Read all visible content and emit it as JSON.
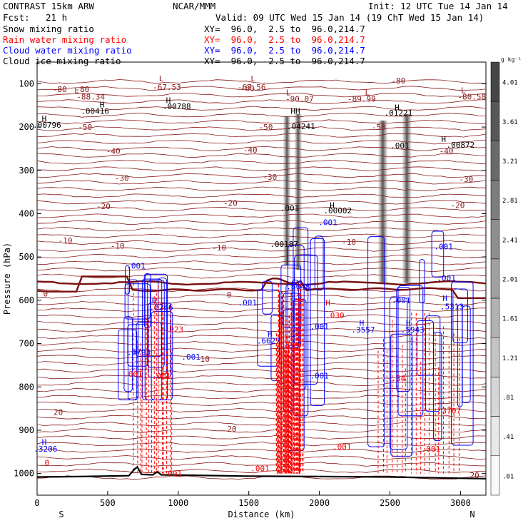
{
  "header": {
    "model": "CONTRAST 15km ARW",
    "center": "NCAR/MMM",
    "init": "Init: 12 UTC Tue 14 Jan 14",
    "fcst_label": "Fcst:",
    "fcst_value": "21 h",
    "valid": "Valid: 09 UTC Wed 15 Jan 14 (19 ChT Wed 15 Jan 14)"
  },
  "fields": [
    {
      "name": "Snow mixing ratio",
      "xy": "XY=  96.0,  2.5 to  96.0,214.7",
      "color": "#000000"
    },
    {
      "name": "Rain water mixing ratio",
      "xy": "XY=  96.0,  2.5 to  96.0,214.7",
      "color": "#ff0000"
    },
    {
      "name": "Cloud water mixing ratio",
      "xy": "XY=  96.0,  2.5 to  96.0,214.7",
      "color": "#0000ff"
    },
    {
      "name": "Cloud ice mixing ratio",
      "xy": "XY=  96.0,  2.5 to  96.0,214.7",
      "color": "#000000"
    }
  ],
  "colors": {
    "temperature": "#8b1a1a",
    "freezing_line": "#7a1010",
    "rain": "#ff0000",
    "cloud": "#0000ff",
    "ice_shading": "#333333",
    "terrain": "#000000"
  },
  "chart_data": {
    "type": "cross-section",
    "xlabel": "Distance (km)",
    "ylabel": "Pressure (hPa)",
    "xlim": [
      0,
      3180
    ],
    "ylim": [
      1050,
      50
    ],
    "x_ticks": [
      "0",
      "500",
      "1000",
      "1500",
      "2000",
      "2500",
      "3000"
    ],
    "y_ticks": [
      "100",
      "200",
      "300",
      "400",
      "500",
      "600",
      "700",
      "800",
      "900",
      "1000"
    ],
    "axis_ends": {
      "left": "S",
      "right": "N"
    },
    "colorbar": {
      "unit": "g kg⁻¹",
      "labels": [
        "4.01",
        "3.61",
        "3.21",
        "2.81",
        "2.41",
        "2.01",
        "1.61",
        "1.21",
        ".81",
        ".41",
        ".01"
      ]
    },
    "temperature_contours": [
      {
        "label": "-80",
        "x": 160,
        "p": 113
      },
      {
        "label": "-80",
        "x": 320,
        "p": 113
      },
      {
        "label": "-80",
        "x": 1490,
        "p": 110
      },
      {
        "label": "-80",
        "x": 2560,
        "p": 93
      },
      {
        "label": "-50",
        "x": 340,
        "p": 200
      },
      {
        "label": "-50",
        "x": 1620,
        "p": 200
      },
      {
        "label": "-50",
        "x": 2420,
        "p": 200
      },
      {
        "label": "-40",
        "x": 540,
        "p": 255
      },
      {
        "label": "-40",
        "x": 1510,
        "p": 253
      },
      {
        "label": "-40",
        "x": 2900,
        "p": 255
      },
      {
        "label": "-30",
        "x": 600,
        "p": 318
      },
      {
        "label": "-30",
        "x": 1650,
        "p": 315
      },
      {
        "label": "-30",
        "x": 3040,
        "p": 320
      },
      {
        "label": "-20",
        "x": 470,
        "p": 383
      },
      {
        "label": "-20",
        "x": 1370,
        "p": 375
      },
      {
        "label": "-20",
        "x": 2980,
        "p": 380
      },
      {
        "label": "-10",
        "x": 200,
        "p": 462
      },
      {
        "label": "-10",
        "x": 570,
        "p": 474
      },
      {
        "label": "-10",
        "x": 1290,
        "p": 478
      },
      {
        "label": "-10",
        "x": 2210,
        "p": 465
      },
      {
        "label": "0",
        "x": 60,
        "p": 585
      },
      {
        "label": "0",
        "x": 1360,
        "p": 587
      },
      {
        "label": "10",
        "x": 1190,
        "p": 735
      },
      {
        "label": "20",
        "x": 150,
        "p": 858
      },
      {
        "label": "20",
        "x": 1380,
        "p": 897
      },
      {
        "label": "20",
        "x": 3100,
        "p": 1004
      }
    ],
    "extrema": [
      {
        "label": "L",
        "x": 880,
        "p": 88,
        "color": "#8b1a1a"
      },
      {
        "label": "-67.53",
        "x": 920,
        "p": 108,
        "color": "#8b1a1a"
      },
      {
        "label": "L",
        "x": 1530,
        "p": 88,
        "color": "#8b1a1a"
      },
      {
        "label": "-67.56",
        "x": 1520,
        "p": 108,
        "color": "#8b1a1a"
      },
      {
        "label": "L",
        "x": 280,
        "p": 115,
        "color": "#8b1a1a"
      },
      {
        "label": "-88.34",
        "x": 380,
        "p": 130,
        "color": "#8b1a1a"
      },
      {
        "label": "L",
        "x": 1780,
        "p": 120,
        "color": "#8b1a1a"
      },
      {
        "label": "-90.07",
        "x": 1860,
        "p": 135,
        "color": "#8b1a1a"
      },
      {
        "label": "L",
        "x": 2340,
        "p": 120,
        "color": "#8b1a1a"
      },
      {
        "label": "-89.99",
        "x": 2300,
        "p": 135,
        "color": "#8b1a1a"
      },
      {
        "label": "L",
        "x": 3020,
        "p": 115,
        "color": "#8b1a1a"
      },
      {
        "label": "-80.58",
        "x": 3080,
        "p": 130,
        "color": "#8b1a1a"
      },
      {
        "label": "H",
        "x": 460,
        "p": 148,
        "color": "#000000"
      },
      {
        "label": ".00416",
        "x": 410,
        "p": 163,
        "color": "#000000"
      },
      {
        "label": "H",
        "x": 930,
        "p": 138,
        "color": "#000000"
      },
      {
        "label": ".00788",
        "x": 990,
        "p": 152,
        "color": "#000000"
      },
      {
        "label": "HH",
        "x": 1830,
        "p": 163,
        "color": "#000000"
      },
      {
        "label": "H",
        "x": 2550,
        "p": 155,
        "color": "#000000"
      },
      {
        "label": ".01221",
        "x": 2560,
        "p": 167,
        "color": "#000000"
      },
      {
        "label": "H",
        "x": 50,
        "p": 180,
        "color": "#000000"
      },
      {
        "label": ".00796",
        "x": 70,
        "p": 195,
        "color": "#000000"
      },
      {
        "label": ".04241",
        "x": 1870,
        "p": 198,
        "color": "#000000"
      },
      {
        "label": "H",
        "x": 2880,
        "p": 228,
        "color": "#000000"
      },
      {
        "label": ".00872",
        "x": 3000,
        "p": 241,
        "color": "#000000"
      },
      {
        "label": ".001",
        "x": 2570,
        "p": 243,
        "color": "#000000"
      },
      {
        "label": ".001",
        "x": 1790,
        "p": 387,
        "color": "#000000"
      },
      {
        "label": "H",
        "x": 2090,
        "p": 380,
        "color": "#000000"
      },
      {
        "label": ".00002",
        "x": 2130,
        "p": 393,
        "color": "#000000"
      },
      {
        "label": ".001",
        "x": 2060,
        "p": 420,
        "color": "#0000ff"
      },
      {
        "label": ".00187",
        "x": 1750,
        "p": 470,
        "color": "#000000"
      },
      {
        "label": ".001",
        "x": 700,
        "p": 520,
        "color": "#0000ff"
      },
      {
        "label": ".001",
        "x": 2880,
        "p": 476,
        "color": "#0000ff"
      },
      {
        "label": ".001",
        "x": 2900,
        "p": 548,
        "color": "#0000ff"
      },
      {
        "label": ".001",
        "x": 1490,
        "p": 605,
        "color": "#0000ff"
      },
      {
        "label": ".001",
        "x": 2580,
        "p": 600,
        "color": "#0000ff"
      },
      {
        "label": "H",
        "x": 830,
        "p": 600,
        "color": "#0000ff"
      },
      {
        "label": ".8266",
        "x": 880,
        "p": 616,
        "color": "#0000ff"
      },
      {
        "label": ".6048",
        "x": 1850,
        "p": 568,
        "color": "#0000ff"
      },
      {
        "label": "H",
        "x": 2060,
        "p": 605,
        "color": "#ff0000"
      },
      {
        "label": ".5313",
        "x": 2940,
        "p": 614,
        "color": "#0000ff"
      },
      {
        "label": "H",
        "x": 2890,
        "p": 595,
        "color": "#0000ff"
      },
      {
        "label": ".030",
        "x": 2110,
        "p": 635,
        "color": "#ff0000"
      },
      {
        "label": ".001",
        "x": 2000,
        "p": 660,
        "color": "#0000ff"
      },
      {
        "label": ".023",
        "x": 970,
        "p": 667,
        "color": "#ff0000"
      },
      {
        "label": "H",
        "x": 2300,
        "p": 652,
        "color": "#0000ff"
      },
      {
        "label": ".3557",
        "x": 2310,
        "p": 668,
        "color": "#0000ff"
      },
      {
        "label": "H",
        "x": 2630,
        "p": 652,
        "color": "#0000ff"
      },
      {
        "label": ".5943",
        "x": 2660,
        "p": 668,
        "color": "#0000ff"
      },
      {
        "label": "H",
        "x": 1650,
        "p": 678,
        "color": "#0000ff"
      },
      {
        "label": ".6627",
        "x": 1640,
        "p": 693,
        "color": "#0000ff"
      },
      {
        "label": ".4793",
        "x": 720,
        "p": 720,
        "color": "#0000ff"
      },
      {
        "label": ".001",
        "x": 1090,
        "p": 730,
        "color": "#0000ff"
      },
      {
        "label": ".001",
        "x": 680,
        "p": 770,
        "color": "#ff0000"
      },
      {
        "label": ".001",
        "x": 880,
        "p": 775,
        "color": "#ff0000"
      },
      {
        "label": ".001",
        "x": 2000,
        "p": 774,
        "color": "#0000ff"
      },
      {
        "label": ".84",
        "x": 2560,
        "p": 780,
        "color": "#ff0000"
      },
      {
        "label": ".3707",
        "x": 2920,
        "p": 855,
        "color": "#ff0000"
      },
      {
        "label": "H",
        "x": 50,
        "p": 927,
        "color": "#0000ff"
      },
      {
        "label": ".3206",
        "x": 60,
        "p": 943,
        "color": "#0000ff"
      },
      {
        "label": ".001",
        "x": 2160,
        "p": 938,
        "color": "#ff0000"
      },
      {
        "label": ".001",
        "x": 2790,
        "p": 943,
        "color": "#ff0000"
      },
      {
        "label": ".001",
        "x": 1580,
        "p": 988,
        "color": "#ff0000"
      },
      {
        "label": ".001",
        "x": 960,
        "p": 1000,
        "color": "#ff0000"
      },
      {
        "label": "0",
        "x": 70,
        "p": 975,
        "color": "#ff0000"
      }
    ],
    "ice_plumes": [
      {
        "x": 1770,
        "p_top": 175,
        "p_bottom": 520,
        "width_km": 55
      },
      {
        "x": 1850,
        "p_top": 170,
        "p_bottom": 530,
        "width_km": 55
      },
      {
        "x": 2450,
        "p_top": 185,
        "p_bottom": 560,
        "width_km": 70
      },
      {
        "x": 2620,
        "p_top": 170,
        "p_bottom": 560,
        "width_km": 70
      }
    ],
    "cloud_water_cells": [
      {
        "x_min": 640,
        "x_max": 900,
        "p_top": 520,
        "p_bottom": 830
      },
      {
        "x_min": 1600,
        "x_max": 2000,
        "p_top": 400,
        "p_bottom": 970
      },
      {
        "x_min": 2300,
        "x_max": 3050,
        "p_top": 440,
        "p_bottom": 960
      }
    ],
    "rain_shafts": [
      {
        "x_min": 680,
        "x_max": 970,
        "p_top": 560,
        "p_bottom": 1000,
        "density": 0.3
      },
      {
        "x_min": 1700,
        "x_max": 1880,
        "p_top": 560,
        "p_bottom": 1000,
        "density": 1.0
      },
      {
        "x_min": 2400,
        "x_max": 3000,
        "p_top": 600,
        "p_bottom": 1000,
        "density": 0.4
      }
    ]
  }
}
